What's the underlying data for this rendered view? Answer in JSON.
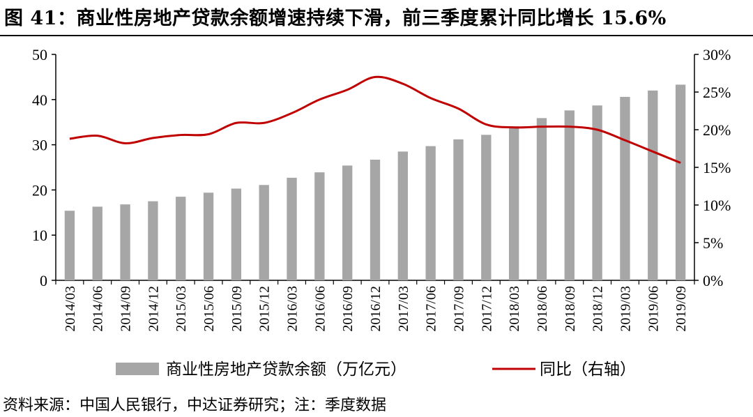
{
  "title": "图 41：商业性房地产贷款余额增速持续下滑，前三季度累计同比增长 15.6%",
  "source": "资料来源：中国人民银行，中达证券研究；注：季度数据",
  "chart_data": {
    "type": "bar",
    "categories": [
      "2014/03",
      "2014/06",
      "2014/09",
      "2014/12",
      "2015/03",
      "2015/06",
      "2015/09",
      "2015/12",
      "2016/03",
      "2016/06",
      "2016/09",
      "2016/12",
      "2017/03",
      "2017/06",
      "2017/09",
      "2017/12",
      "2018/03",
      "2018/06",
      "2018/09",
      "2018/12",
      "2019/03",
      "2019/06",
      "2019/09"
    ],
    "series": [
      {
        "name": "商业性房地产贷款余额（万亿元）",
        "type": "bar",
        "axis": "left",
        "color": "#a6a6a6",
        "values": [
          15.4,
          16.3,
          16.8,
          17.5,
          18.5,
          19.4,
          20.3,
          21.1,
          22.7,
          23.9,
          25.4,
          26.7,
          28.5,
          29.7,
          31.2,
          32.2,
          34.1,
          35.9,
          37.6,
          38.7,
          40.6,
          42.0,
          43.3
        ]
      },
      {
        "name": "同比（右轴）",
        "type": "line",
        "axis": "right",
        "color": "#c00000",
        "values": [
          18.8,
          19.2,
          18.2,
          18.9,
          19.3,
          19.4,
          20.9,
          20.9,
          22.2,
          24.0,
          25.3,
          27.0,
          26.1,
          24.2,
          22.8,
          20.7,
          20.3,
          20.4,
          20.4,
          20.0,
          18.6,
          17.1,
          15.6
        ]
      }
    ],
    "y_left": {
      "min": 0,
      "max": 50,
      "step": 10,
      "ticks": [
        "0",
        "10",
        "20",
        "30",
        "40",
        "50"
      ]
    },
    "y_right": {
      "min": 0,
      "max": 30,
      "step": 5,
      "ticks": [
        "0%",
        "5%",
        "10%",
        "15%",
        "20%",
        "25%",
        "30%"
      ]
    },
    "xlabel": "",
    "ylabel": "",
    "grid": false,
    "legend": {
      "position": "bottom",
      "items": [
        "商业性房地产贷款余额（万亿元）",
        "同比（右轴）"
      ]
    }
  }
}
